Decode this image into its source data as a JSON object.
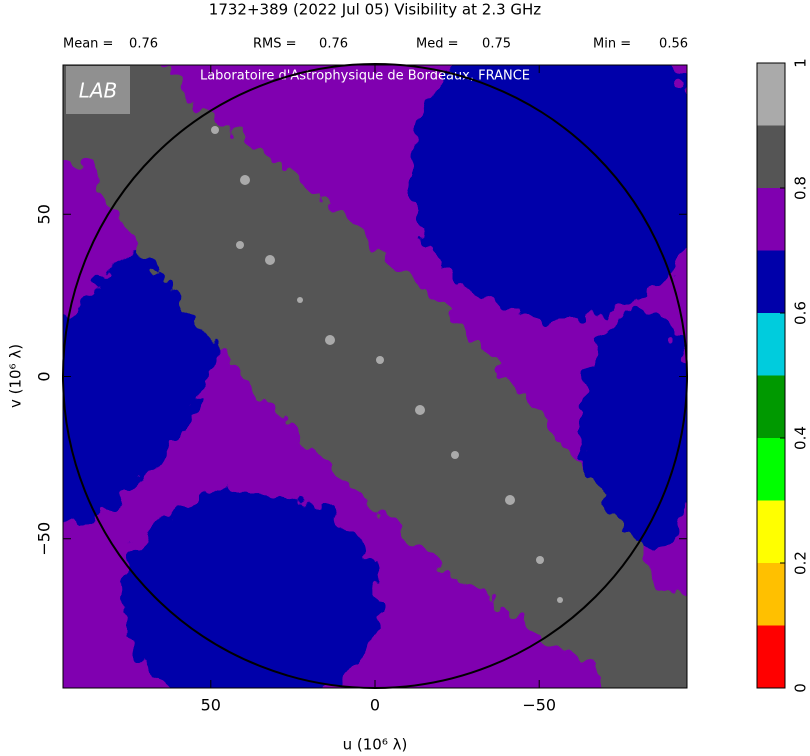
{
  "chart_data": {
    "type": "heatmap",
    "title": "1732+389   (2022 Jul 05)   Visibility at  2.3 GHz",
    "stats": [
      {
        "label": "Mean =",
        "value": 0.76
      },
      {
        "label": "RMS =",
        "value": 0.76
      },
      {
        "label": "Med =",
        "value": 0.75
      },
      {
        "label": "Min =",
        "value": 0.56
      }
    ],
    "watermark": "Laboratoire d'Astrophysique de Bordeaux, FRANCE",
    "logo": "LAB",
    "x_label": "u  (10⁶ λ)",
    "y_label": "v  (10⁶ λ)",
    "xlim": [
      95,
      -95
    ],
    "ylim": [
      -96,
      96
    ],
    "xticks": [
      50,
      0,
      {
        "value": -50,
        "label": "−50"
      }
    ],
    "yticks": [
      {
        "value": -50,
        "label": "−50"
      },
      0,
      50
    ],
    "colorbar": {
      "levels": [
        0,
        0.1,
        0.2,
        0.3,
        0.4,
        0.5,
        0.6,
        0.7,
        0.8,
        0.9,
        1
      ],
      "colors": [
        "#ff0000",
        "#ffc000",
        "#ffff00",
        "#00ff00",
        "#009900",
        "#00ccdd",
        "#0000aa",
        "#8000b0",
        "#555555",
        "#aaaaaa"
      ],
      "ticks": [
        0,
        0.2,
        0.4,
        0.6,
        0.8,
        1
      ]
    }
  }
}
